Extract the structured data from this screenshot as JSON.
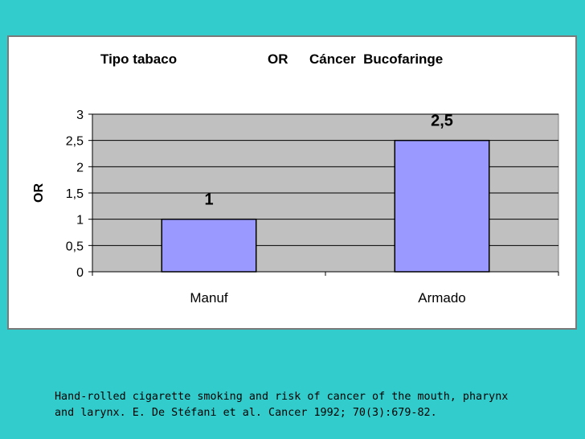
{
  "chart_data": {
    "type": "bar",
    "title_parts": [
      "Tipo tabaco",
      "OR",
      "Cáncer  Bucofaringe"
    ],
    "ylabel": "OR",
    "xlabel": "",
    "categories": [
      "Manuf",
      "Armado"
    ],
    "values": [
      1,
      2.5
    ],
    "data_labels": [
      "1",
      "2,5"
    ],
    "ylim": [
      0,
      3
    ],
    "yticks": [
      0,
      0.5,
      1,
      1.5,
      2,
      2.5,
      3
    ],
    "ytick_labels": [
      "0",
      "0,5",
      "1",
      "1,5",
      "2",
      "2,5",
      "3"
    ],
    "grid": true,
    "legend": "none",
    "colors": {
      "bar_fill": "#9999FF",
      "bar_stroke": "#000000",
      "plot_bg": "#C0C0C0",
      "gridline": "#000000",
      "slide_bg": "#33CCCC"
    }
  },
  "caption": {
    "line1": "Hand-rolled cigarette smoking and risk of cancer of the mouth, pharynx",
    "line2": "and larynx. E. De Stéfani et al. Cancer 1992; 70(3):679-82."
  }
}
